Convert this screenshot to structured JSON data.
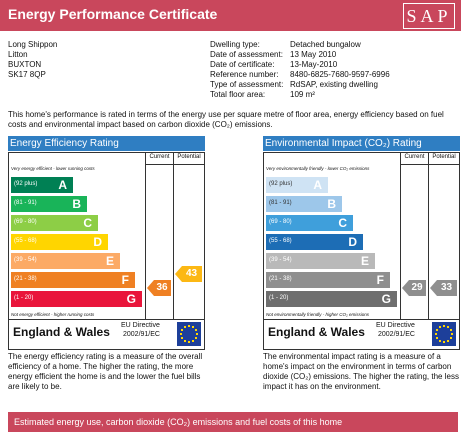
{
  "header": {
    "title": "Energy Performance Certificate",
    "logo": "SAP"
  },
  "address": [
    "Long Shippon",
    "Litton",
    "BUXTON",
    "SK17 8QP"
  ],
  "details": [
    {
      "label": "Dwelling type:",
      "value": "Detached bungalow"
    },
    {
      "label": "Date of assessment:",
      "value": "13 May 2010"
    },
    {
      "label": "Date of certificate:",
      "value": "13-May-2010"
    },
    {
      "label": "Reference number:",
      "value": "8480-6825-7680-9597-6996"
    },
    {
      "label": "Type of assessment:",
      "value": "RdSAP, existing dwelling"
    },
    {
      "label": "Total floor area:",
      "value": "109 m²"
    }
  ],
  "intro": "This home's performance is rated in terms of the energy use per square metre of floor area, energy efficiency based on fuel costs and environmental impact based on carbon dioxide (CO₂) emissions.",
  "panels": [
    {
      "title": "Energy Efficiency Rating",
      "columns": [
        "Current",
        "Potential"
      ],
      "top_note": "Very energy efficient - lower running costs",
      "bands": [
        {
          "range": "(92 plus)",
          "letter": "A"
        },
        {
          "range": "(81 - 91)",
          "letter": "B"
        },
        {
          "range": "(69 - 80)",
          "letter": "C"
        },
        {
          "range": "(55 - 68)",
          "letter": "D"
        },
        {
          "range": "(39 - 54)",
          "letter": "E"
        },
        {
          "range": "(21 - 38)",
          "letter": "F"
        },
        {
          "range": "(1 - 20)",
          "letter": "G"
        }
      ],
      "bottom_note": "Not energy efficient - higher running costs",
      "current": 36,
      "potential": 43,
      "region": "England & Wales",
      "directive": [
        "EU Directive",
        "2002/91/EC"
      ],
      "description": "The energy efficiency rating is a measure of the overall efficiency of a home. The higher the rating, the more energy efficient the home is and the lower the fuel bills are likely to be."
    },
    {
      "title": "Environmental Impact (CO₂) Rating",
      "columns": [
        "Current",
        "Potential"
      ],
      "top_note": "Very environmentally friendly - lower CO₂ emissions",
      "bands": [
        {
          "range": "(92 plus)",
          "letter": "A"
        },
        {
          "range": "(81 - 91)",
          "letter": "B"
        },
        {
          "range": "(69 - 80)",
          "letter": "C"
        },
        {
          "range": "(55 - 68)",
          "letter": "D"
        },
        {
          "range": "(39 - 54)",
          "letter": "E"
        },
        {
          "range": "(21 - 38)",
          "letter": "F"
        },
        {
          "range": "(1 - 20)",
          "letter": "G"
        }
      ],
      "bottom_note": "Not environmentally friendly - higher CO₂ emissions",
      "current": 29,
      "potential": 33,
      "region": "England & Wales",
      "directive": [
        "EU Directive",
        "2002/91/EC"
      ],
      "description": "The environmental impact rating is a measure of a home's impact on the environment in terms of carbon dioxide (CO₂) emissions. The higher the rating, the less impact it has on the environment."
    }
  ],
  "footer": "Estimated energy use, carbon dioxide (CO₂) emissions and fuel costs of this home"
}
